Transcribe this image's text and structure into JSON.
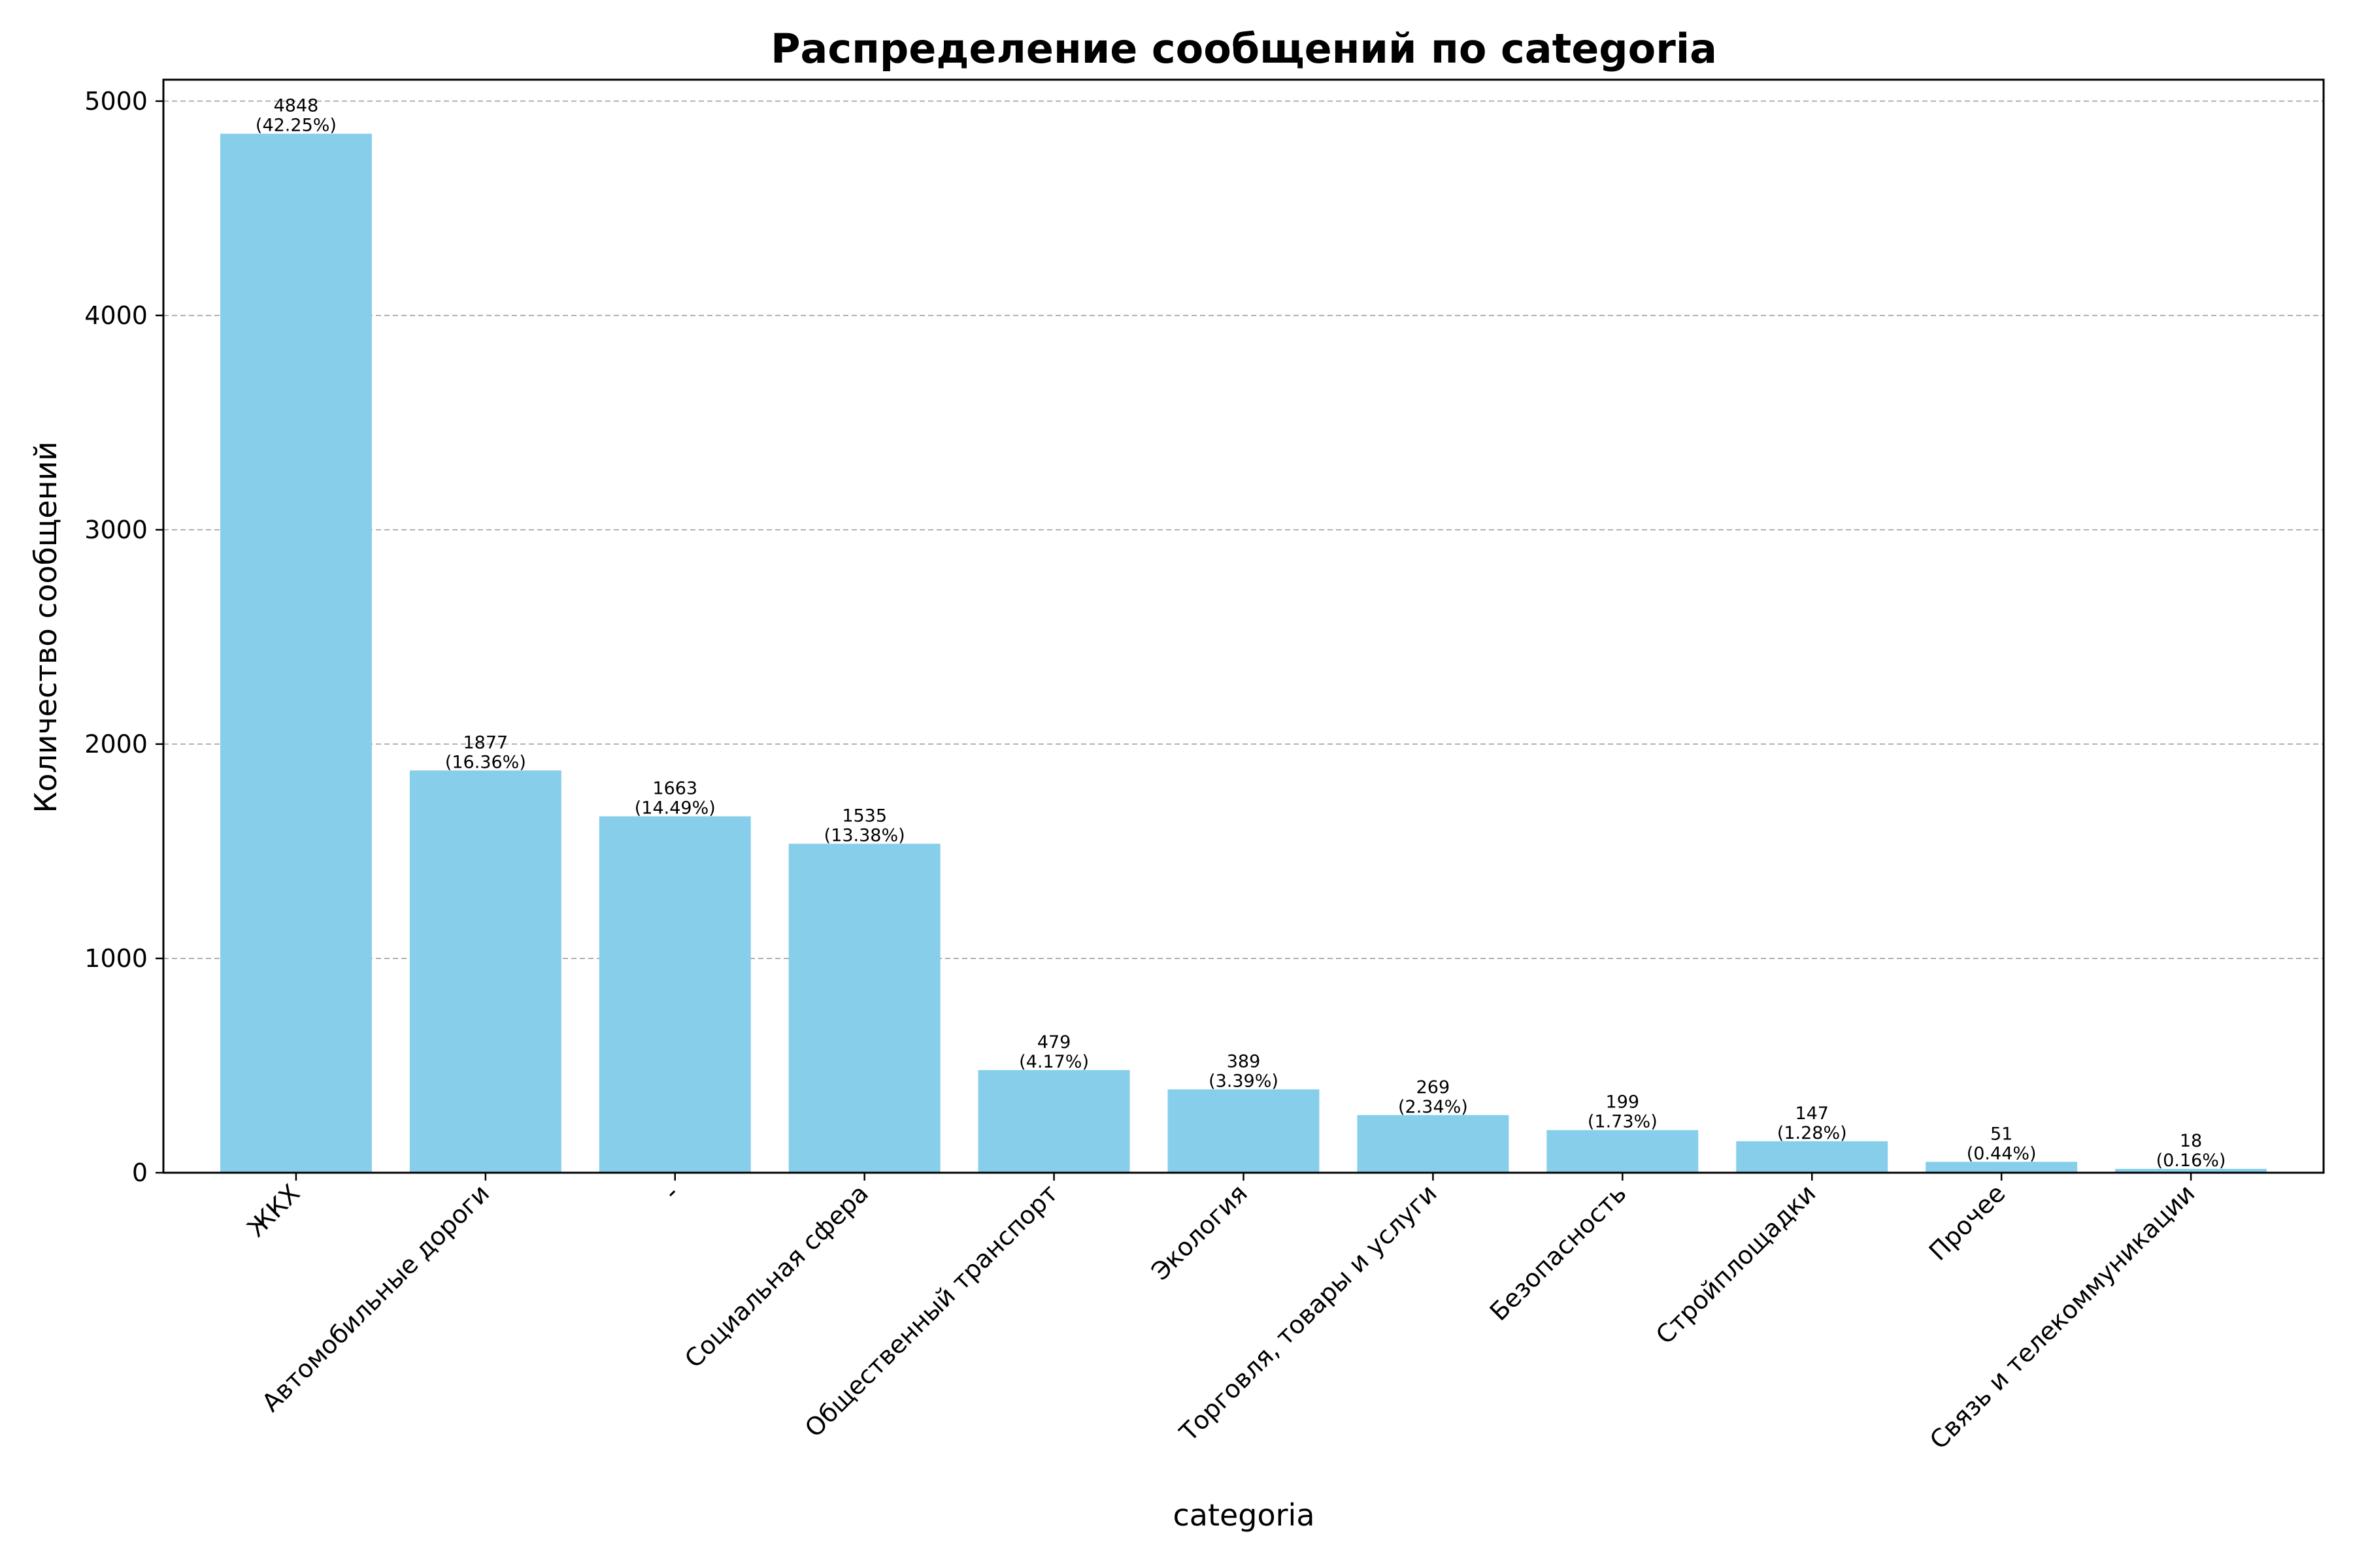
{
  "chart_data": {
    "type": "bar",
    "title": "Распределение сообщений по categoria",
    "xlabel": "categoria",
    "ylabel": "Количество сообщений",
    "categories": [
      "ЖКХ",
      "Автомобильные дороги",
      "-",
      "Социальная сфера",
      "Общественный транспорт",
      "Экология",
      "Торговля, товары и услуги",
      "Безопасность",
      "Стройплощадки",
      "Прочее",
      "Связь и телекоммуникации"
    ],
    "values": [
      4848,
      1877,
      1663,
      1535,
      479,
      389,
      269,
      199,
      147,
      51,
      18
    ],
    "data_labels": [
      [
        "4848",
        "(42.25%)"
      ],
      [
        "1877",
        "(16.36%)"
      ],
      [
        "1663",
        "(14.49%)"
      ],
      [
        "1535",
        "(13.38%)"
      ],
      [
        "479",
        "(4.17%)"
      ],
      [
        "389",
        "(3.39%)"
      ],
      [
        "269",
        "(2.34%)"
      ],
      [
        "199",
        "(1.73%)"
      ],
      [
        "147",
        "(1.28%)"
      ],
      [
        "51",
        "(0.44%)"
      ],
      [
        "18",
        "(0.16%)"
      ]
    ],
    "ylim": [
      0,
      5100
    ],
    "yticks": [
      0,
      1000,
      2000,
      3000,
      4000,
      5000
    ],
    "grid": "y-dashed",
    "legend": "none",
    "colors": {
      "bar": "#87ceeb",
      "grid": "#b0b0b0",
      "axes": "#000000"
    }
  }
}
